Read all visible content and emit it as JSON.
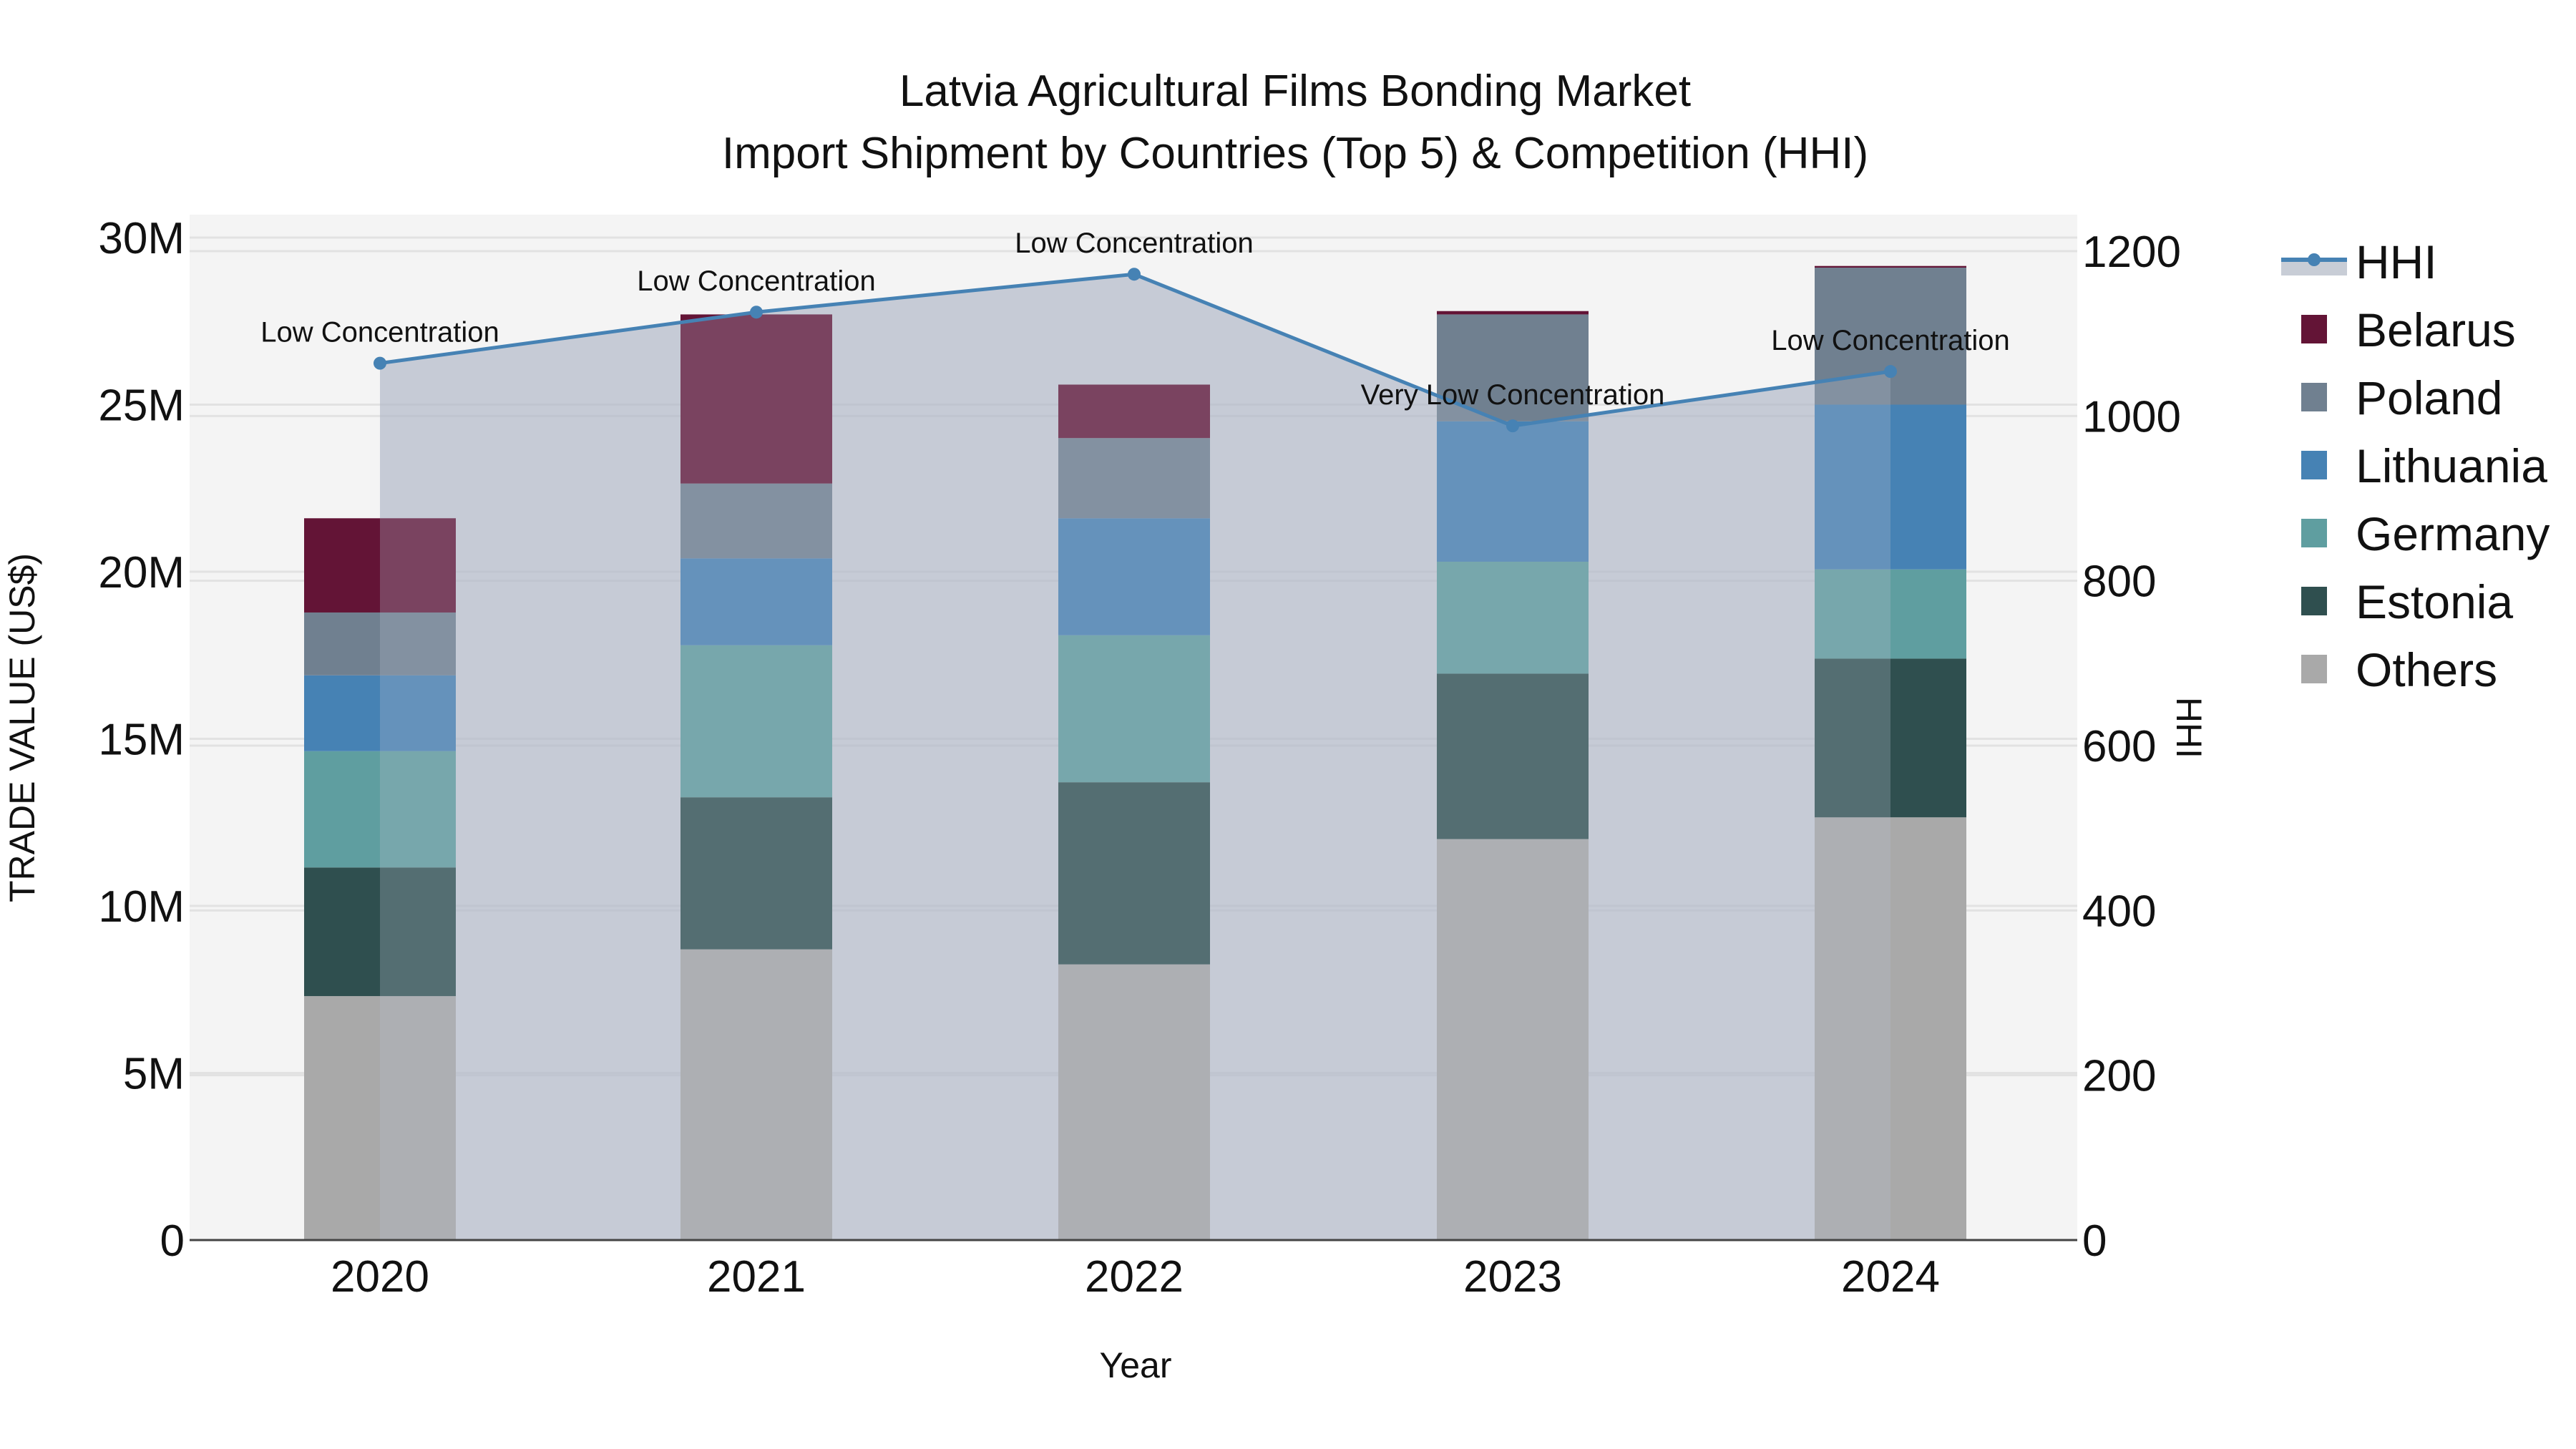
{
  "title": {
    "line1": "Latvia Agricultural Films Bonding Market",
    "line2": "Import Shipment by Countries (Top 5) & Competition (HHI)"
  },
  "axes": {
    "x_title": "Year",
    "y_left_title": "TRADE VALUE (US$)",
    "y_right_title": "HHI",
    "y_left_ticks": [
      "0",
      "5M",
      "10M",
      "15M",
      "20M",
      "25M",
      "30M"
    ],
    "y_right_ticks": [
      "0",
      "200",
      "400",
      "600",
      "800",
      "1000",
      "1200"
    ],
    "x_ticks": [
      "2020",
      "2021",
      "2022",
      "2023",
      "2024"
    ]
  },
  "legend": [
    {
      "name": "HHI",
      "type": "line",
      "color": "#4682b4"
    },
    {
      "name": "Belarus",
      "type": "bar",
      "color": "#631436"
    },
    {
      "name": "Poland",
      "type": "bar",
      "color": "#708090"
    },
    {
      "name": "Lithuania",
      "type": "bar",
      "color": "#4682b4"
    },
    {
      "name": "Germany",
      "type": "bar",
      "color": "#5f9ea0"
    },
    {
      "name": "Estonia",
      "type": "bar",
      "color": "#2f4f4f"
    },
    {
      "name": "Others",
      "type": "bar",
      "color": "#a9a9a9"
    }
  ],
  "annotations": [
    {
      "year": "2020",
      "text": "Low Concentration"
    },
    {
      "year": "2021",
      "text": "Low Concentration"
    },
    {
      "year": "2022",
      "text": "Low Concentration"
    },
    {
      "year": "2023",
      "text": "Very Low Concentration"
    },
    {
      "year": "2024",
      "text": "Low Concentration"
    }
  ],
  "chart_data": {
    "type": "bar",
    "subtype": "stacked bar + line (dual axis)",
    "title": "Latvia Agricultural Films Bonding Market — Import Shipment by Countries (Top 5) & Competition (HHI)",
    "xlabel": "Year",
    "ylabel": "TRADE VALUE (US$)",
    "y2label": "HHI",
    "categories": [
      "2020",
      "2021",
      "2022",
      "2023",
      "2024"
    ],
    "ylim": [
      0,
      30500000
    ],
    "y2lim": [
      0,
      1220
    ],
    "grid": true,
    "legend_position": "right",
    "series": [
      {
        "name": "Others",
        "type": "bar",
        "axis": "y",
        "color": "#a9a9a9",
        "values": [
          7300000,
          8700000,
          8250000,
          12000000,
          12650000
        ]
      },
      {
        "name": "Estonia",
        "type": "bar",
        "axis": "y",
        "color": "#2f4f4f",
        "values": [
          3850000,
          4550000,
          5450000,
          4950000,
          4750000
        ]
      },
      {
        "name": "Germany",
        "type": "bar",
        "axis": "y",
        "color": "#5f9ea0",
        "values": [
          3480000,
          4550000,
          4400000,
          3350000,
          2670000
        ]
      },
      {
        "name": "Lithuania",
        "type": "bar",
        "axis": "y",
        "color": "#4682b4",
        "values": [
          2270000,
          2600000,
          3500000,
          4200000,
          4930000
        ]
      },
      {
        "name": "Poland",
        "type": "bar",
        "axis": "y",
        "color": "#708090",
        "values": [
          1880000,
          2240000,
          2400000,
          3200000,
          4100000
        ]
      },
      {
        "name": "Belarus",
        "type": "bar",
        "axis": "y",
        "color": "#631436",
        "values": [
          2820000,
          5060000,
          1600000,
          100000,
          50000
        ]
      },
      {
        "name": "HHI",
        "type": "line",
        "axis": "y2",
        "color": "#4682b4",
        "values": [
          1064,
          1126,
          1172,
          988,
          1054
        ]
      }
    ],
    "totals": [
      21600000,
      27700000,
      25600000,
      27800000,
      29150000
    ],
    "annotations": [
      "Low Concentration",
      "Low Concentration",
      "Low Concentration",
      "Very Low Concentration",
      "Low Concentration"
    ]
  }
}
